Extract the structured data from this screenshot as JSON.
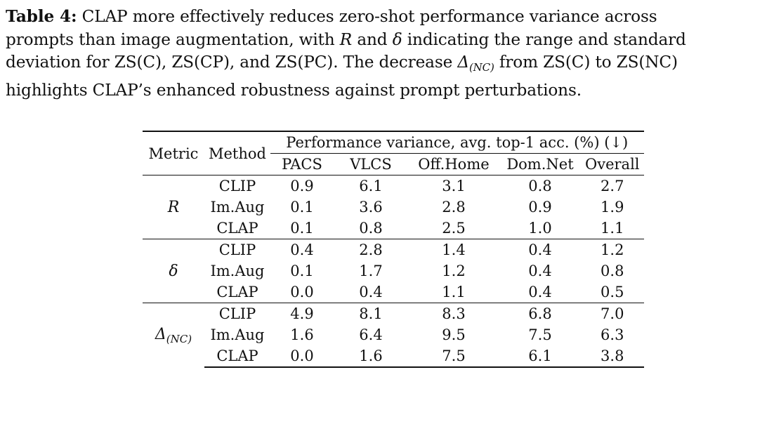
{
  "caption": {
    "label": "Table 4:",
    "line1_text": " CLAP more effectively reduces zero-shot performance variance across",
    "line2_text_a": "prompts than image augmentation, with ",
    "sym_R": "R",
    "line2_text_b": " and ",
    "sym_delta": "δ",
    "line2_text_c": " indicating the range and standard",
    "line3_text_a": "deviation for ZS(C), ZS(CP), and ZS(PC). The decrease ",
    "sym_Delta": "Δ",
    "sym_Delta_sub": "(NC)",
    "line3_text_b": " from ZS(C) to ZS(NC)",
    "line4_text": "highlights CLAP’s enhanced robustness against prompt perturbations."
  },
  "table": {
    "header": {
      "metric": "Metric",
      "method": "Method",
      "spanning": "Performance variance, avg. top-1 acc. (%) (↓)",
      "columns": [
        "PACS",
        "VLCS",
        "Off.Home",
        "Dom.Net",
        "Overall"
      ]
    },
    "groups": [
      {
        "metric": "R",
        "metric_sub": "",
        "rows": [
          {
            "method": "CLIP",
            "values": [
              "0.9",
              "6.1",
              "3.1",
              "0.8",
              "2.7"
            ],
            "bold": [
              false,
              false,
              false,
              true,
              false
            ]
          },
          {
            "method": "Im.Aug",
            "values": [
              "0.1",
              "3.6",
              "2.8",
              "0.9",
              "1.9"
            ],
            "bold": [
              true,
              false,
              false,
              false,
              false
            ]
          },
          {
            "method": "CLAP",
            "values": [
              "0.1",
              "0.8",
              "2.5",
              "1.0",
              "1.1"
            ],
            "bold": [
              true,
              true,
              true,
              false,
              true
            ]
          }
        ]
      },
      {
        "metric": "δ",
        "metric_sub": "",
        "rows": [
          {
            "method": "CLIP",
            "values": [
              "0.4",
              "2.8",
              "1.4",
              "0.4",
              "1.2"
            ],
            "bold": [
              false,
              false,
              false,
              true,
              false
            ]
          },
          {
            "method": "Im.Aug",
            "values": [
              "0.1",
              "1.7",
              "1.2",
              "0.4",
              "0.8"
            ],
            "bold": [
              false,
              false,
              false,
              true,
              false
            ]
          },
          {
            "method": "CLAP",
            "values": [
              "0.0",
              "0.4",
              "1.1",
              "0.4",
              "0.5"
            ],
            "bold": [
              true,
              true,
              true,
              true,
              true
            ]
          }
        ]
      },
      {
        "metric": "Δ",
        "metric_sub": "(NC)",
        "rows": [
          {
            "method": "CLIP",
            "values": [
              "4.9",
              "8.1",
              "8.3",
              "6.8",
              "7.0"
            ],
            "bold": [
              false,
              false,
              false,
              false,
              false
            ]
          },
          {
            "method": "Im.Aug",
            "values": [
              "1.6",
              "6.4",
              "9.5",
              "7.5",
              "6.3"
            ],
            "bold": [
              false,
              false,
              false,
              false,
              false
            ]
          },
          {
            "method": "CLAP",
            "values": [
              "0.0",
              "1.6",
              "7.5",
              "6.1",
              "3.8"
            ],
            "bold": [
              true,
              true,
              true,
              true,
              true
            ]
          }
        ]
      }
    ]
  }
}
